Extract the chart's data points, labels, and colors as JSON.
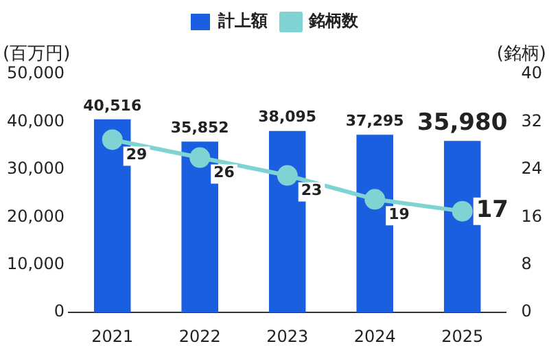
{
  "chart_data": {
    "type": "bar",
    "categories": [
      "2021",
      "2022",
      "2023",
      "2024",
      "2025"
    ],
    "series": [
      {
        "name": "計上額",
        "color": "#1a5fe0",
        "values": [
          40516,
          35852,
          38095,
          37295,
          35980
        ],
        "value_labels": [
          "40,516",
          "35,852",
          "38,095",
          "37,295",
          "35,980"
        ]
      },
      {
        "name": "銘柄数",
        "type": "line",
        "axis": "y2",
        "color": "#7fd3d3",
        "values": [
          29,
          26,
          23,
          19,
          17
        ],
        "value_labels": [
          "29",
          "26",
          "23",
          "19",
          "17"
        ]
      }
    ],
    "ylabel": "(百万円)",
    "y2label": "(銘柄)",
    "ylim": [
      0,
      50000
    ],
    "yticks": [
      0,
      {
        "value": 10000,
        "label": "10,000"
      },
      {
        "value": 20000,
        "label": "20,000"
      },
      {
        "value": 30000,
        "label": "30,000"
      },
      {
        "value": 40000,
        "label": "40,000"
      },
      {
        "value": 50000,
        "label": "50,000"
      }
    ],
    "y2lim": [
      0,
      40
    ],
    "y2ticks": [
      0,
      8,
      16,
      24,
      32,
      40
    ],
    "grid": false,
    "legend": "top",
    "marker": "circle",
    "line_style": "solid"
  }
}
